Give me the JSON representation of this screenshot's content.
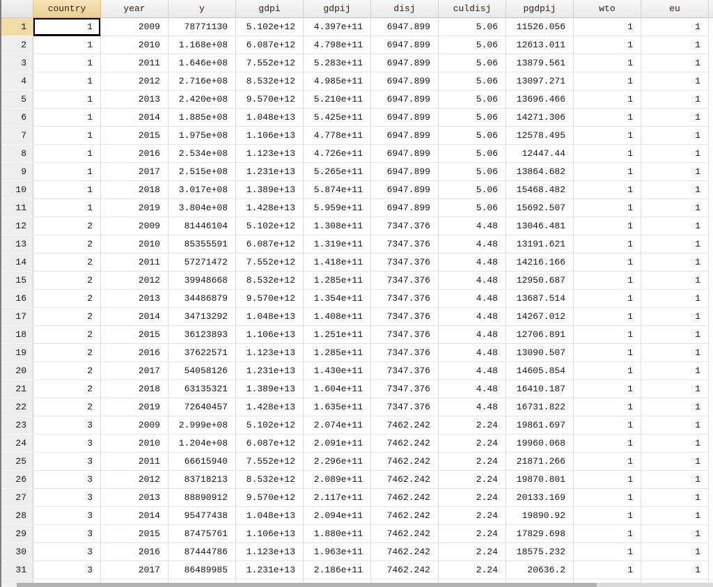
{
  "app": {
    "name": "data-editor-grid",
    "colors": {
      "selection_highlight": "#f3dba4",
      "selected_header_top": "#f8e5ba",
      "selected_header_bottom": "#ecce8f",
      "header_text": "#2e2016",
      "cell_text": "#141414",
      "selected_cell_border": "#000000",
      "row_header_bg": "#eeeeee",
      "gridline": "#dcdcdc"
    }
  },
  "grid": {
    "columns": [
      "country",
      "year",
      "y",
      "gdpi",
      "gdpij",
      "disj",
      "culdisj",
      "pgdpij",
      "wto",
      "eu"
    ],
    "selection": {
      "row": 1,
      "column": "country",
      "value": "1"
    },
    "rows": [
      {
        "n": 1,
        "cells": [
          "1",
          "2009",
          "78771130",
          "5.102e+12",
          "4.397e+11",
          "6947.899",
          "5.06",
          "11526.056",
          "1",
          "1"
        ]
      },
      {
        "n": 2,
        "cells": [
          "1",
          "2010",
          "1.168e+08",
          "6.087e+12",
          "4.798e+11",
          "6947.899",
          "5.06",
          "12613.011",
          "1",
          "1"
        ]
      },
      {
        "n": 3,
        "cells": [
          "1",
          "2011",
          "1.646e+08",
          "7.552e+12",
          "5.283e+11",
          "6947.899",
          "5.06",
          "13879.561",
          "1",
          "1"
        ]
      },
      {
        "n": 4,
        "cells": [
          "1",
          "2012",
          "2.716e+08",
          "8.532e+12",
          "4.985e+11",
          "6947.899",
          "5.06",
          "13097.271",
          "1",
          "1"
        ]
      },
      {
        "n": 5,
        "cells": [
          "1",
          "2013",
          "2.420e+08",
          "9.570e+12",
          "5.210e+11",
          "6947.899",
          "5.06",
          "13696.466",
          "1",
          "1"
        ]
      },
      {
        "n": 6,
        "cells": [
          "1",
          "2014",
          "1.885e+08",
          "1.048e+13",
          "5.425e+11",
          "6947.899",
          "5.06",
          "14271.306",
          "1",
          "1"
        ]
      },
      {
        "n": 7,
        "cells": [
          "1",
          "2015",
          "1.975e+08",
          "1.106e+13",
          "4.778e+11",
          "6947.899",
          "5.06",
          "12578.495",
          "1",
          "1"
        ]
      },
      {
        "n": 8,
        "cells": [
          "1",
          "2016",
          "2.534e+08",
          "1.123e+13",
          "4.726e+11",
          "6947.899",
          "5.06",
          "12447.44",
          "1",
          "1"
        ]
      },
      {
        "n": 9,
        "cells": [
          "1",
          "2017",
          "2.515e+08",
          "1.231e+13",
          "5.265e+11",
          "6947.899",
          "5.06",
          "13864.682",
          "1",
          "1"
        ]
      },
      {
        "n": 10,
        "cells": [
          "1",
          "2018",
          "3.017e+08",
          "1.389e+13",
          "5.874e+11",
          "6947.899",
          "5.06",
          "15468.482",
          "1",
          "1"
        ]
      },
      {
        "n": 11,
        "cells": [
          "1",
          "2019",
          "3.804e+08",
          "1.428e+13",
          "5.959e+11",
          "6947.899",
          "5.06",
          "15692.507",
          "1",
          "1"
        ]
      },
      {
        "n": 12,
        "cells": [
          "2",
          "2009",
          "81446104",
          "5.102e+12",
          "1.308e+11",
          "7347.376",
          "4.48",
          "13046.481",
          "1",
          "1"
        ]
      },
      {
        "n": 13,
        "cells": [
          "2",
          "2010",
          "85355591",
          "6.087e+12",
          "1.319e+11",
          "7347.376",
          "4.48",
          "13191.621",
          "1",
          "1"
        ]
      },
      {
        "n": 14,
        "cells": [
          "2",
          "2011",
          "57271472",
          "7.552e+12",
          "1.418e+11",
          "7347.376",
          "4.48",
          "14216.166",
          "1",
          "1"
        ]
      },
      {
        "n": 15,
        "cells": [
          "2",
          "2012",
          "39948668",
          "8.532e+12",
          "1.285e+11",
          "7347.376",
          "4.48",
          "12950.687",
          "1",
          "1"
        ]
      },
      {
        "n": 16,
        "cells": [
          "2",
          "2013",
          "34486879",
          "9.570e+12",
          "1.354e+11",
          "7347.376",
          "4.48",
          "13687.514",
          "1",
          "1"
        ]
      },
      {
        "n": 17,
        "cells": [
          "2",
          "2014",
          "34713292",
          "1.048e+13",
          "1.408e+11",
          "7347.376",
          "4.48",
          "14267.012",
          "1",
          "1"
        ]
      },
      {
        "n": 18,
        "cells": [
          "2",
          "2015",
          "36123893",
          "1.106e+13",
          "1.251e+11",
          "7347.376",
          "4.48",
          "12706.891",
          "1",
          "1"
        ]
      },
      {
        "n": 19,
        "cells": [
          "2",
          "2016",
          "37622571",
          "1.123e+13",
          "1.285e+11",
          "7347.376",
          "4.48",
          "13090.507",
          "1",
          "1"
        ]
      },
      {
        "n": 20,
        "cells": [
          "2",
          "2017",
          "54058126",
          "1.231e+13",
          "1.430e+11",
          "7347.376",
          "4.48",
          "14605.854",
          "1",
          "1"
        ]
      },
      {
        "n": 21,
        "cells": [
          "2",
          "2018",
          "63135321",
          "1.389e+13",
          "1.604e+11",
          "7347.376",
          "4.48",
          "16410.187",
          "1",
          "1"
        ]
      },
      {
        "n": 22,
        "cells": [
          "2",
          "2019",
          "72640457",
          "1.428e+13",
          "1.635e+11",
          "7347.376",
          "4.48",
          "16731.822",
          "1",
          "1"
        ]
      },
      {
        "n": 23,
        "cells": [
          "3",
          "2009",
          "2.999e+08",
          "5.102e+12",
          "2.074e+11",
          "7462.242",
          "2.24",
          "19861.697",
          "1",
          "1"
        ]
      },
      {
        "n": 24,
        "cells": [
          "3",
          "2010",
          "1.204e+08",
          "6.087e+12",
          "2.091e+11",
          "7462.242",
          "2.24",
          "19960.068",
          "1",
          "1"
        ]
      },
      {
        "n": 25,
        "cells": [
          "3",
          "2011",
          "66615940",
          "7.552e+12",
          "2.296e+11",
          "7462.242",
          "2.24",
          "21871.266",
          "1",
          "1"
        ]
      },
      {
        "n": 26,
        "cells": [
          "3",
          "2012",
          "83718213",
          "8.532e+12",
          "2.089e+11",
          "7462.242",
          "2.24",
          "19870.801",
          "1",
          "1"
        ]
      },
      {
        "n": 27,
        "cells": [
          "3",
          "2013",
          "88890912",
          "9.570e+12",
          "2.117e+11",
          "7462.242",
          "2.24",
          "20133.169",
          "1",
          "1"
        ]
      },
      {
        "n": 28,
        "cells": [
          "3",
          "2014",
          "95477438",
          "1.048e+13",
          "2.094e+11",
          "7462.242",
          "2.24",
          "19890.92",
          "1",
          "1"
        ]
      },
      {
        "n": 29,
        "cells": [
          "3",
          "2015",
          "87475761",
          "1.106e+13",
          "1.880e+11",
          "7462.242",
          "2.24",
          "17829.698",
          "1",
          "1"
        ]
      },
      {
        "n": 30,
        "cells": [
          "3",
          "2016",
          "87444786",
          "1.123e+13",
          "1.963e+11",
          "7462.242",
          "2.24",
          "18575.232",
          "1",
          "1"
        ]
      },
      {
        "n": 31,
        "cells": [
          "3",
          "2017",
          "86489985",
          "1.231e+13",
          "2.186e+11",
          "7462.242",
          "2.24",
          "20636.2",
          "1",
          "1"
        ]
      }
    ]
  }
}
